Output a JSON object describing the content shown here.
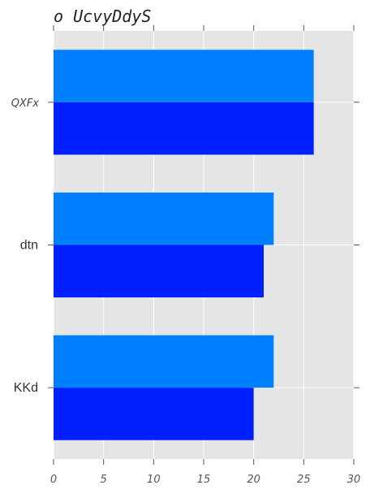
{
  "chart_data": {
    "type": "bar",
    "orientation": "horizontal",
    "title": "o UcvyDdyS",
    "categories": [
      "QXFx",
      "dtn",
      "KKd"
    ],
    "series": [
      {
        "values": [
          26,
          22,
          22
        ],
        "color": "#0080ff"
      },
      {
        "values": [
          26,
          21,
          20
        ],
        "color": "#0020ff"
      }
    ],
    "xlim": [
      0,
      30
    ],
    "xticks": [
      0,
      5,
      10,
      15,
      20,
      25,
      30
    ],
    "grid": true,
    "background": "#e5e5e5"
  }
}
